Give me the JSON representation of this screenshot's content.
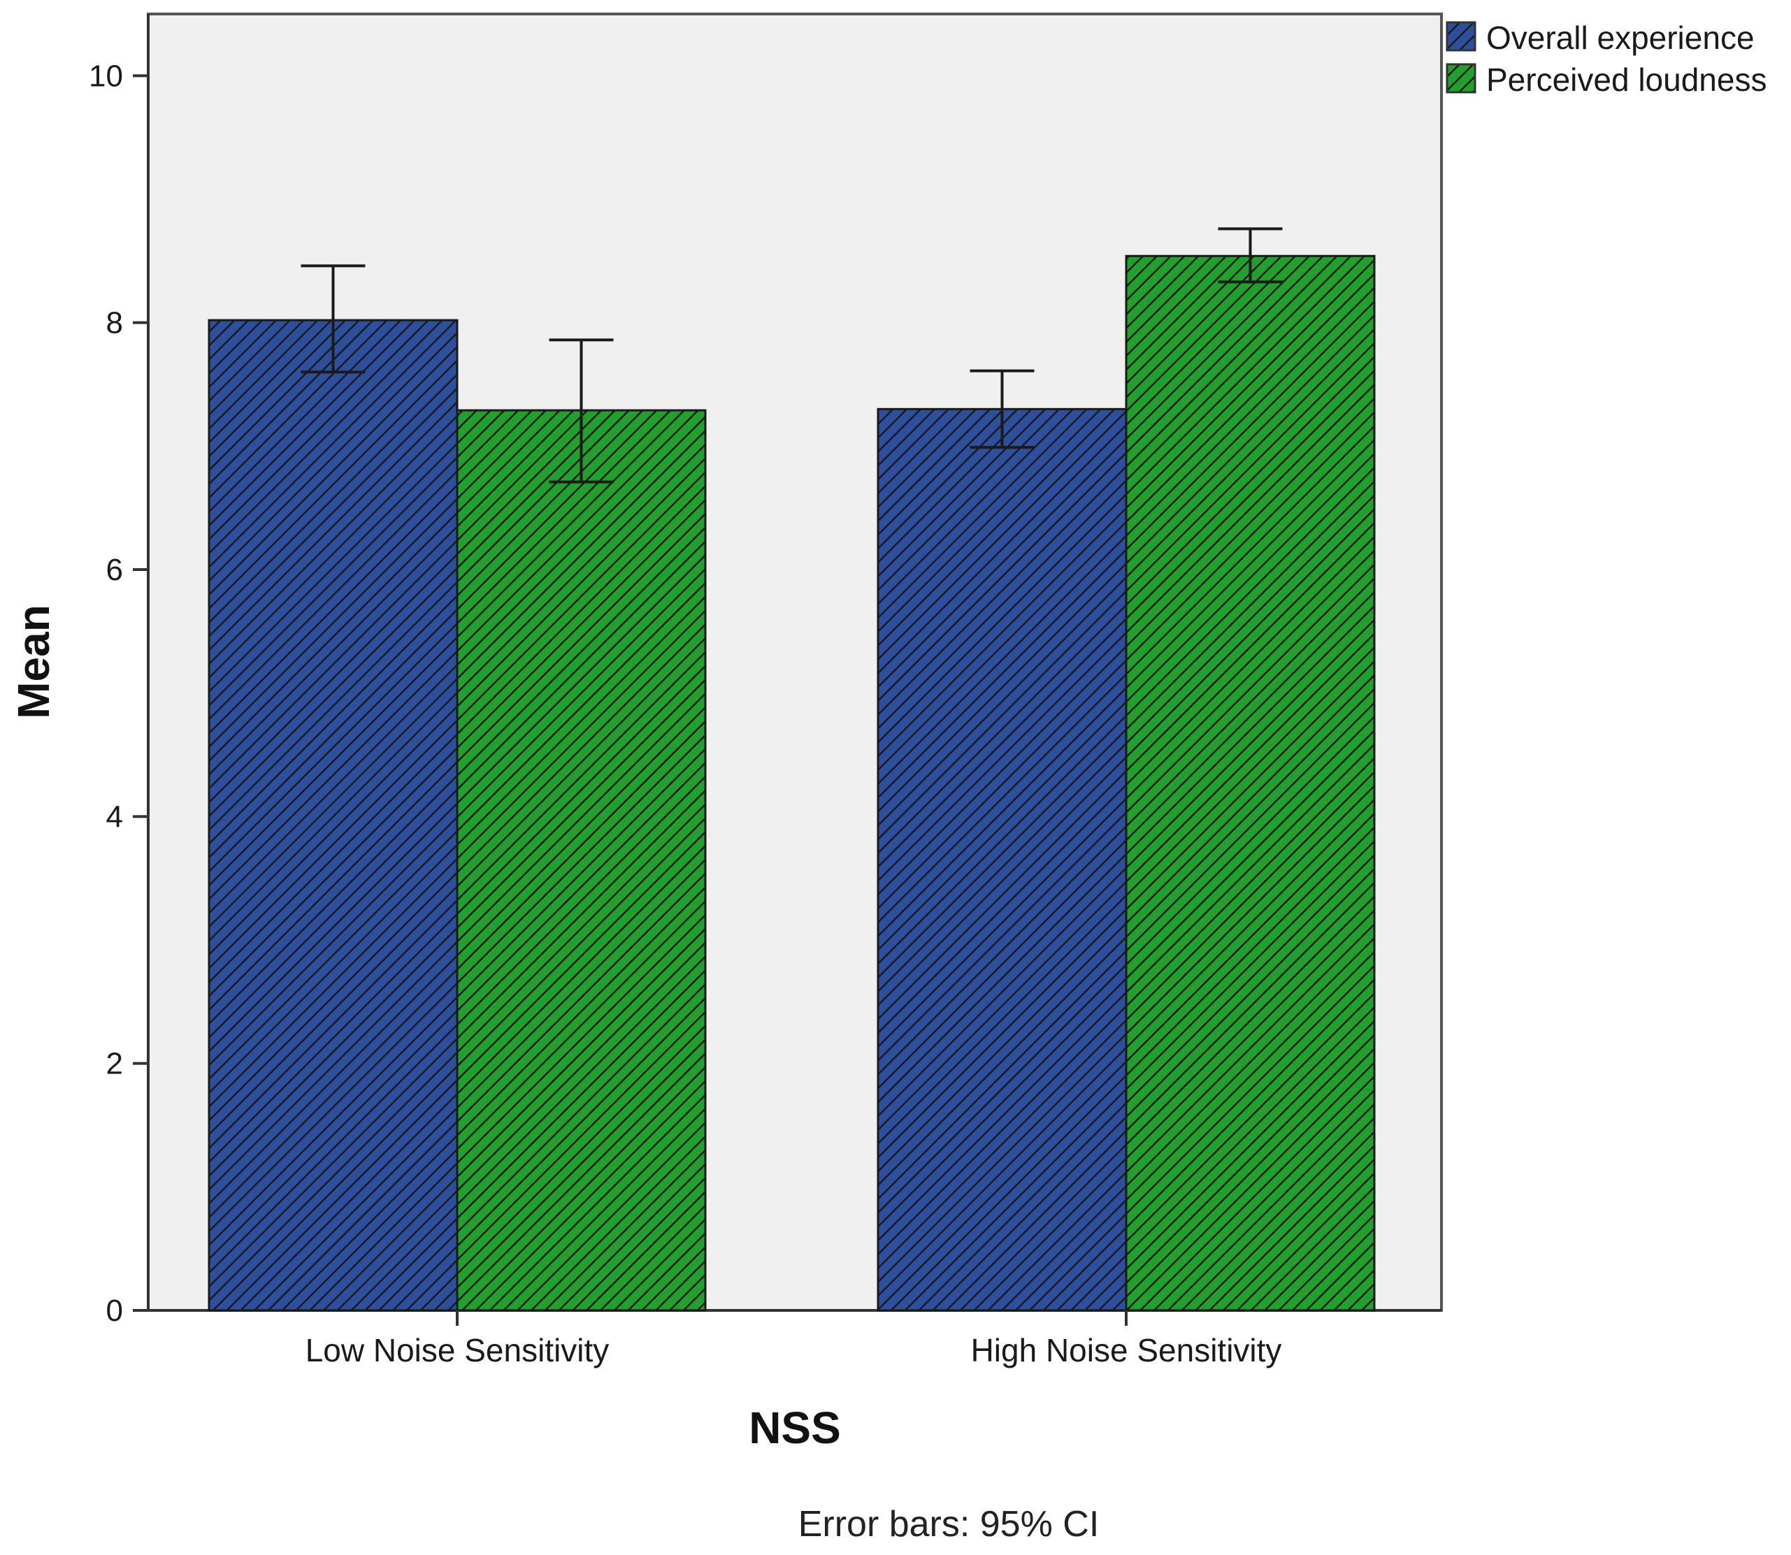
{
  "chart_data": {
    "type": "bar",
    "title": "",
    "xlabel": "NSS",
    "ylabel": "Mean",
    "ylim": [
      0,
      10.5
    ],
    "yticks": [
      0,
      2,
      4,
      6,
      8,
      10
    ],
    "categories": [
      "Low Noise Sensitivity",
      "High Noise Sensitivity"
    ],
    "series": [
      {
        "name": "Overall experience",
        "color": "#2e4f9e",
        "values": [
          8.02,
          7.3
        ],
        "ci_low": [
          7.6,
          6.99
        ],
        "ci_high": [
          8.46,
          7.61
        ]
      },
      {
        "name": "Perceived loudness",
        "color": "#22a02e",
        "values": [
          7.29,
          8.54
        ],
        "ci_low": [
          6.71,
          8.33
        ],
        "ci_high": [
          7.86,
          8.76
        ]
      }
    ],
    "legend_position": "top-right",
    "grid": false,
    "footnote": "Error bars: 95% CI"
  },
  "colors": {
    "plot_background": "#f0f0f0",
    "hatch": "#1a1a1a",
    "axis": "#333333"
  }
}
